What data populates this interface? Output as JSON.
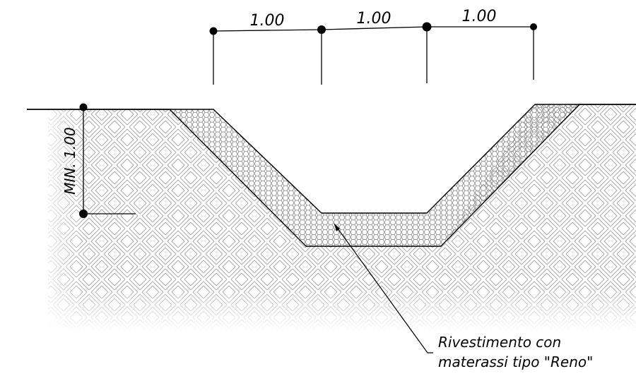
{
  "top_dimensions": [
    "1.00",
    "1.00",
    "1.00"
  ],
  "side_dimension": "MIN. 1.00",
  "callout": {
    "line1": "Rivestimento con",
    "line2": "materassi tipo \"Reno\""
  },
  "colors": {
    "line": "#000000",
    "soil_hatch": "#9a9a9a",
    "lining_hatch": "#777777",
    "background": "#ffffff"
  }
}
